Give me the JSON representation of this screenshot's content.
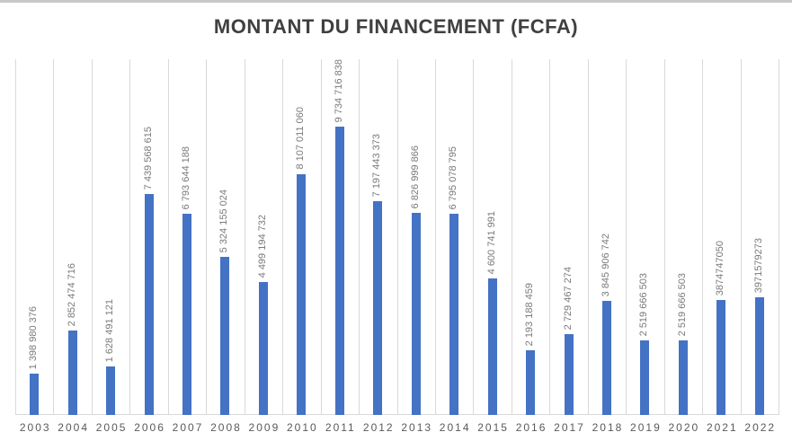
{
  "chart_data": {
    "type": "bar",
    "title": "MONTANT DU FINANCEMENT (FCFA)",
    "categories": [
      "2003",
      "2004",
      "2005",
      "2006",
      "2007",
      "2008",
      "2009",
      "2010",
      "2011",
      "2012",
      "2013",
      "2014",
      "2015",
      "2016",
      "2017",
      "2018",
      "2019",
      "2020",
      "2021",
      "2022"
    ],
    "values": [
      1398980376,
      2852474716,
      1628491121,
      7439568615,
      6793644188,
      5324155024,
      4499194732,
      8107011060,
      9734716838,
      7197443373,
      6826999866,
      6795078795,
      4600741991,
      2193188459,
      2729467274,
      3845906742,
      2519666503,
      2519666503,
      3874747050,
      3971579273
    ],
    "value_labels": [
      "1 398 980 376",
      "2 852 474 716",
      "1 628 491 121",
      "7 439 568 615",
      "6 793 644 188",
      "5 324 155 024",
      "4 499 194 732",
      "8 107 011 060",
      "9 734 716 838",
      "7 197 443 373",
      "6 826 999 866",
      "6 795 078 795",
      "4 600 741 991",
      "2 193 188 459",
      "2 729 467 274",
      "3 845 906 742",
      "2 519 666 503",
      "2 519 666 503",
      "3874747050",
      "3971579273"
    ],
    "ylim": [
      0,
      12000000000
    ],
    "xlabel": "",
    "ylabel": "",
    "grid": "vertical-only",
    "legend": "none",
    "value_label_rotation": 90,
    "colors": {
      "bar": "#4472C4",
      "gridline": "#D9D9D9",
      "axis_line": "#D9D9D9",
      "value_label": "#7A7A7A",
      "tick_label": "#595959",
      "title": "#404040",
      "background": "#FFFFFF"
    }
  }
}
